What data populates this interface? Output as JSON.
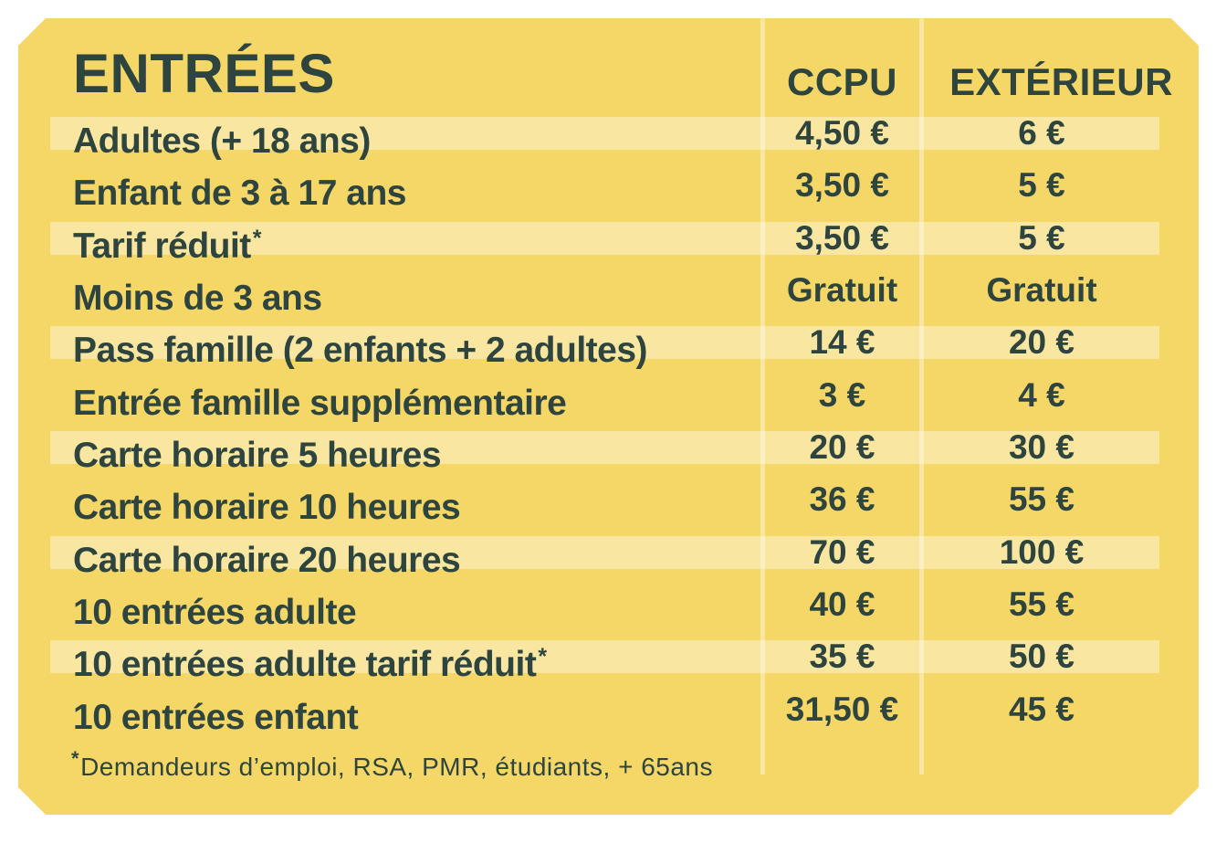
{
  "header": {
    "title": "ENTRÉES",
    "columns": [
      "CCPU",
      "EXTÉRIEUR"
    ]
  },
  "table": {
    "rows": [
      {
        "label": "Adultes (+ 18 ans)",
        "note_mark": "",
        "ccpu": "4,50 €",
        "exterior": "6 €"
      },
      {
        "label": "Enfant de 3 à 17 ans",
        "note_mark": "",
        "ccpu": "3,50 €",
        "exterior": "5 €"
      },
      {
        "label": "Tarif réduit",
        "note_mark": "*",
        "ccpu": "3,50 €",
        "exterior": "5 €"
      },
      {
        "label": "Moins de 3 ans",
        "note_mark": "",
        "ccpu": "Gratuit",
        "exterior": "Gratuit"
      },
      {
        "label": "Pass famille (2 enfants + 2 adultes)",
        "note_mark": "",
        "ccpu": "14 €",
        "exterior": "20 €"
      },
      {
        "label": "Entrée famille supplémentaire",
        "note_mark": "",
        "ccpu": "3 €",
        "exterior": "4 €"
      },
      {
        "label": "Carte horaire 5 heures",
        "note_mark": "",
        "ccpu": "20 €",
        "exterior": "30 €"
      },
      {
        "label": "Carte horaire 10 heures",
        "note_mark": "",
        "ccpu": "36 €",
        "exterior": "55 €"
      },
      {
        "label": "Carte horaire 20 heures",
        "note_mark": "",
        "ccpu": "70 €",
        "exterior": "100 €"
      },
      {
        "label": "10 entrées adulte",
        "note_mark": "",
        "ccpu": "40 €",
        "exterior": "55 €"
      },
      {
        "label": "10 entrées adulte tarif réduit",
        "note_mark": "*",
        "ccpu": "35 €",
        "exterior": "50 €"
      },
      {
        "label": "10 entrées enfant",
        "note_mark": "",
        "ccpu": "31,50 €",
        "exterior": "45 €"
      }
    ]
  },
  "footnote": {
    "mark": "*",
    "text": "Demandeurs d’emploi, RSA, PMR, étudiants, + 65ans"
  },
  "colors": {
    "page_background": "#FFFFFF",
    "card_background": "#F5D767",
    "stripe_overlay": "rgba(255,255,255,0.38)",
    "text": "#2E443F"
  }
}
